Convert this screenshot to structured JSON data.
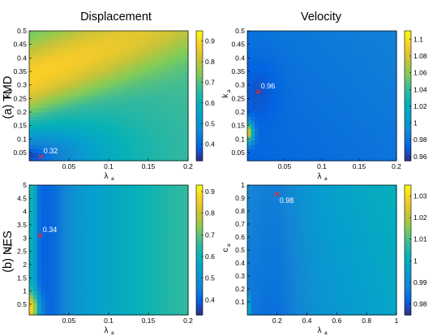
{
  "column_titles": [
    "Displacement",
    "Velocity"
  ],
  "row_titles": [
    "(a) TMD",
    "(b) NES"
  ],
  "chart_data": [
    {
      "id": "tmd-displacement",
      "type": "heatmap",
      "title": "",
      "xlabel": "λ",
      "xlabel_sub": "a",
      "ylabel": "k",
      "ylabel_sub": "a",
      "xlim": [
        0,
        0.2
      ],
      "ylim": [
        0.02,
        0.5
      ],
      "xticks": [
        0.05,
        0.1,
        0.15,
        0.2
      ],
      "yticks": [
        0.05,
        0.1,
        0.15,
        0.2,
        0.25,
        0.3,
        0.35,
        0.4,
        0.45,
        0.5
      ],
      "colorbar": {
        "range": [
          0.32,
          0.95
        ],
        "ticks": [
          0.4,
          0.5,
          0.6,
          0.7,
          0.8,
          0.9
        ]
      },
      "optimum": {
        "x": 0.015,
        "y": 0.035,
        "label": "0.32"
      },
      "grid": false
    },
    {
      "id": "tmd-velocity",
      "type": "heatmap",
      "title": "",
      "xlabel": "λ",
      "xlabel_sub": "a",
      "ylabel": "k",
      "ylabel_sub": "a",
      "xlim": [
        0,
        0.2
      ],
      "ylim": [
        0.02,
        0.5
      ],
      "xticks": [
        0.05,
        0.1,
        0.15,
        0.2
      ],
      "yticks": [
        0.05,
        0.1,
        0.15,
        0.2,
        0.25,
        0.3,
        0.35,
        0.4,
        0.45,
        0.5
      ],
      "colorbar": {
        "range": [
          0.955,
          1.11
        ],
        "ticks": [
          0.96,
          0.98,
          1,
          1.02,
          1.04,
          1.06,
          1.08,
          1.1
        ]
      },
      "optimum": {
        "x": 0.015,
        "y": 0.275,
        "label": "0.96"
      },
      "grid": false
    },
    {
      "id": "nes-displacement",
      "type": "heatmap",
      "title": "",
      "xlabel": "λ",
      "xlabel_sub": "a",
      "ylabel": "c",
      "ylabel_sub": "a",
      "xlim": [
        0,
        0.2
      ],
      "ylim": [
        0.1,
        5
      ],
      "xticks": [
        0.05,
        0.1,
        0.15,
        0.2
      ],
      "yticks": [
        0.5,
        1,
        1.5,
        2,
        2.5,
        3,
        3.5,
        4,
        4.5,
        5
      ],
      "colorbar": {
        "range": [
          0.33,
          0.93
        ],
        "ticks": [
          0.4,
          0.5,
          0.6,
          0.7,
          0.8,
          0.9
        ]
      },
      "optimum": {
        "x": 0.014,
        "y": 3.1,
        "label": "0.34"
      },
      "grid": false
    },
    {
      "id": "nes-velocity",
      "type": "heatmap",
      "title": "",
      "xlabel": "λ",
      "xlabel_sub": "a",
      "ylabel": "c",
      "ylabel_sub": "a",
      "xlim": [
        0,
        1
      ],
      "ylim": [
        0,
        1
      ],
      "xticks": [
        0.2,
        0.4,
        0.6,
        0.8,
        1
      ],
      "yticks": [
        0.1,
        0.2,
        0.3,
        0.4,
        0.5,
        0.6,
        0.7,
        0.8,
        0.9,
        1
      ],
      "colorbar": {
        "range": [
          0.975,
          1.035
        ],
        "ticks": [
          0.98,
          0.99,
          1,
          1.01,
          1.02,
          1.03
        ]
      },
      "optimum": {
        "x": 0.2,
        "y": 0.93,
        "label": "0.98"
      },
      "grid": false
    }
  ]
}
